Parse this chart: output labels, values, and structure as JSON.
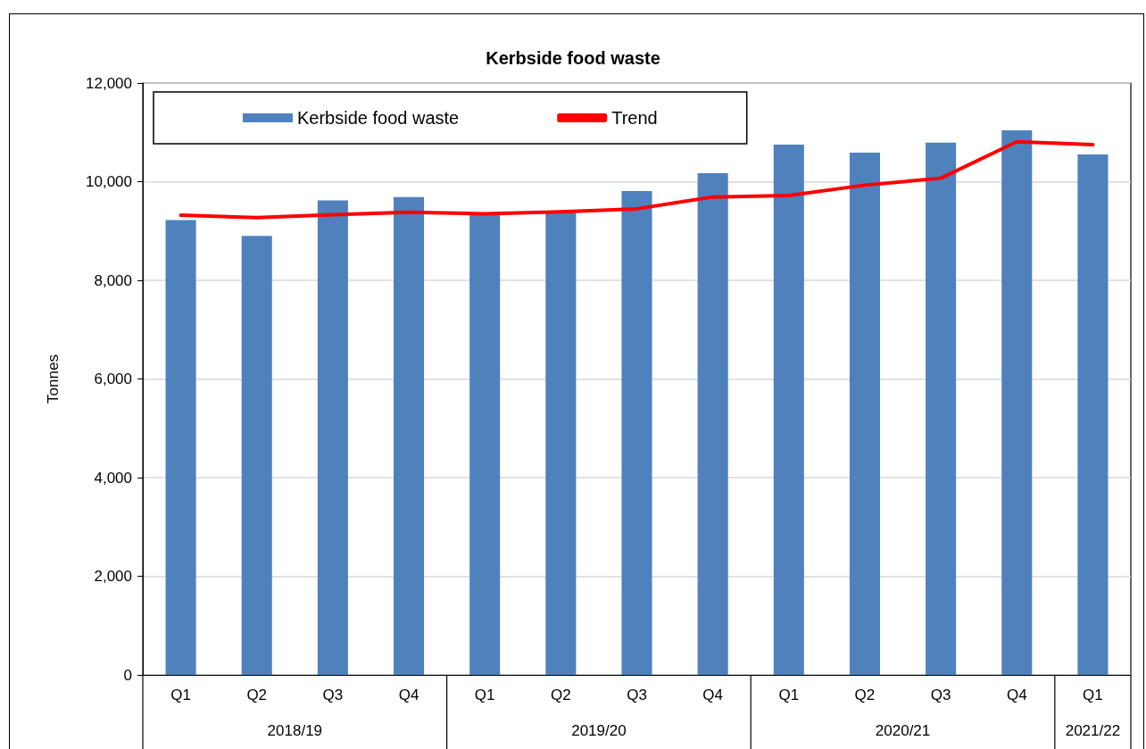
{
  "chart_data": {
    "type": "bar",
    "title": "Kerbside food waste",
    "ylabel": "Tonnes",
    "categories": [
      "Q1",
      "Q2",
      "Q3",
      "Q4",
      "Q1",
      "Q2",
      "Q3",
      "Q4",
      "Q1",
      "Q2",
      "Q3",
      "Q4",
      "Q1"
    ],
    "series": [
      {
        "name": "Kerbside food waste",
        "color": "#4f81bd",
        "values": [
          9220,
          8900,
          9620,
          9690,
          9350,
          9380,
          9810,
          10170,
          10750,
          10590,
          10790,
          11040,
          10550
        ]
      },
      {
        "name": "Trend",
        "type": "line",
        "color": "#ff0000",
        "marker": "none",
        "values": [
          9320,
          9270,
          9330,
          9380,
          9350,
          9390,
          9450,
          9690,
          9720,
          9930,
          10070,
          10810,
          10750
        ]
      }
    ],
    "annotations": [
      "2018/19",
      "2019/20",
      "2020/21",
      "2021/22"
    ],
    "ylim": [
      0,
      12000
    ],
    "yticks": [
      0,
      {
        "value": 2000,
        "label": "2,000"
      },
      {
        "value": 4000,
        "label": "4,000"
      },
      {
        "value": 6000,
        "label": "6,000"
      },
      {
        "value": 8000,
        "label": "8,000"
      },
      {
        "value": 10000,
        "label": "10,000"
      },
      {
        "value": 12000,
        "label": "12,000"
      }
    ],
    "grid": "y",
    "legend": "top left"
  }
}
